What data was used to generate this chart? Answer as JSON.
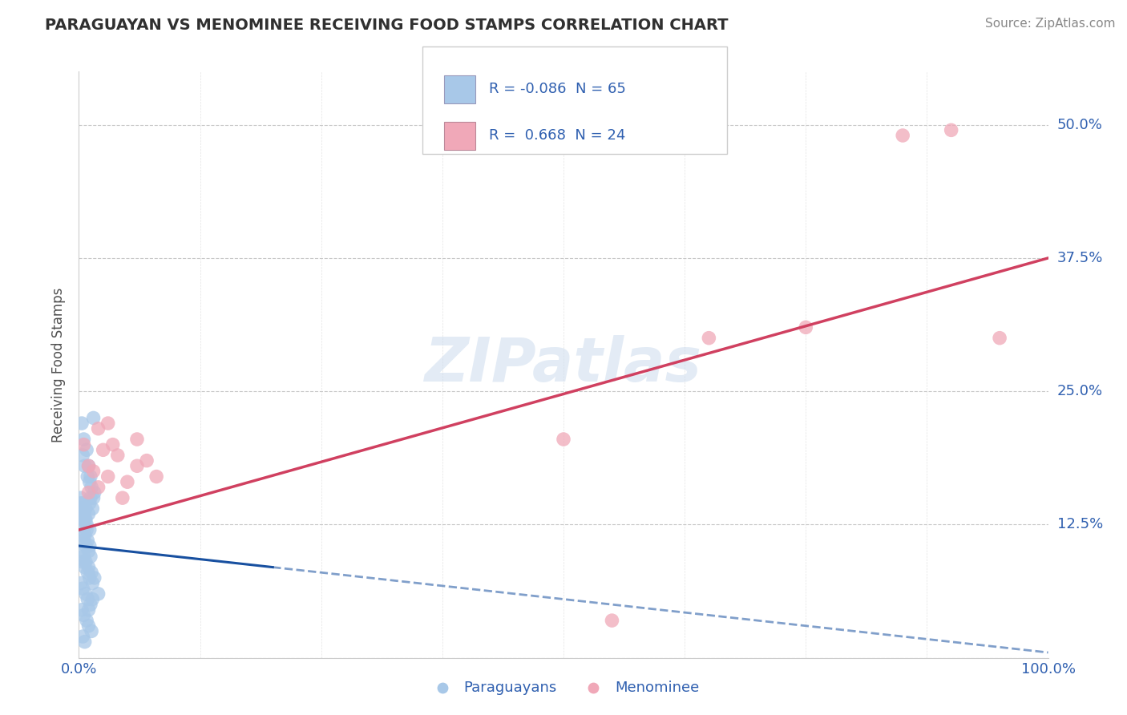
{
  "title": "PARAGUAYAN VS MENOMINEE RECEIVING FOOD STAMPS CORRELATION CHART",
  "source": "Source: ZipAtlas.com",
  "ylabel": "Receiving Food Stamps",
  "xlim": [
    0.0,
    100.0
  ],
  "ylim": [
    0.0,
    55.0
  ],
  "yticks": [
    0.0,
    12.5,
    25.0,
    37.5,
    50.0
  ],
  "ytick_labels": [
    "",
    "12.5%",
    "25.0%",
    "37.5%",
    "50.0%"
  ],
  "xtick_labels": [
    "0.0%",
    "100.0%"
  ],
  "legend_labels": [
    "Paraguayans",
    "Menominee"
  ],
  "r_blue": -0.086,
  "n_blue": 65,
  "r_pink": 0.668,
  "n_pink": 24,
  "blue_color": "#a8c8e8",
  "pink_color": "#f0a8b8",
  "blue_line_color": "#1850a0",
  "pink_line_color": "#d04060",
  "title_color": "#303030",
  "axis_label_color": "#505050",
  "tick_color": "#3060b0",
  "grid_color": "#c8c8c8",
  "watermark": "ZIPatlas",
  "blue_line_x0": 0.0,
  "blue_line_y0": 10.5,
  "blue_line_x1": 20.0,
  "blue_line_y1": 8.5,
  "blue_dash_x0": 20.0,
  "blue_dash_y0": 8.5,
  "blue_dash_x1": 100.0,
  "blue_dash_y1": 0.5,
  "pink_line_x0": 0.0,
  "pink_line_y0": 12.0,
  "pink_line_x1": 100.0,
  "pink_line_y1": 37.5,
  "blue_scatter_x": [
    0.3,
    0.5,
    0.8,
    1.0,
    1.2,
    1.5,
    0.4,
    0.6,
    0.9,
    1.1,
    1.3,
    1.6,
    0.2,
    0.4,
    0.7,
    1.0,
    0.3,
    0.5,
    0.8,
    1.2,
    0.6,
    0.9,
    1.1,
    1.4,
    0.3,
    0.5,
    0.7,
    1.0,
    1.3,
    1.6,
    0.2,
    0.4,
    0.6,
    0.8,
    1.1,
    0.3,
    0.5,
    0.7,
    1.0,
    1.2,
    0.4,
    0.6,
    0.9,
    1.1,
    1.4,
    0.2,
    0.4,
    0.7,
    0.9,
    1.2,
    0.3,
    0.5,
    0.8,
    1.0,
    1.3,
    0.4,
    0.6,
    1.0,
    1.4,
    2.0,
    0.3,
    0.5,
    0.7,
    1.1,
    1.5
  ],
  "blue_scatter_y": [
    22.0,
    20.5,
    19.5,
    18.0,
    17.0,
    22.5,
    19.0,
    18.0,
    17.0,
    16.5,
    16.0,
    15.5,
    15.0,
    14.5,
    14.0,
    13.5,
    13.0,
    12.5,
    12.0,
    15.0,
    11.5,
    11.0,
    10.5,
    14.0,
    10.0,
    9.5,
    9.0,
    8.5,
    8.0,
    7.5,
    14.5,
    13.5,
    13.0,
    12.5,
    12.0,
    11.5,
    11.0,
    10.5,
    10.0,
    9.5,
    9.0,
    8.5,
    8.0,
    7.5,
    7.0,
    7.0,
    6.5,
    6.0,
    5.5,
    5.0,
    4.5,
    4.0,
    3.5,
    3.0,
    2.5,
    2.0,
    1.5,
    4.5,
    5.5,
    6.0,
    14.0,
    13.5,
    13.0,
    14.5,
    15.0
  ],
  "pink_scatter_x": [
    0.5,
    1.0,
    2.0,
    3.0,
    1.5,
    2.5,
    3.5,
    5.0,
    4.5,
    6.0,
    7.0,
    8.0,
    2.0,
    4.0,
    6.0,
    50.0,
    55.0,
    65.0,
    75.0,
    85.0,
    90.0,
    95.0,
    1.0,
    3.0
  ],
  "pink_scatter_y": [
    20.0,
    18.0,
    21.5,
    22.0,
    17.5,
    19.5,
    20.0,
    16.5,
    15.0,
    20.5,
    18.5,
    17.0,
    16.0,
    19.0,
    18.0,
    20.5,
    3.5,
    30.0,
    31.0,
    49.0,
    49.5,
    30.0,
    15.5,
    17.0
  ]
}
